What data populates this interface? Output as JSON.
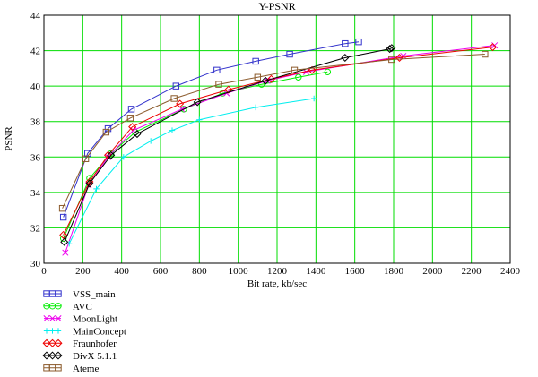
{
  "chart_data": {
    "type": "line",
    "title": "Y-PSNR",
    "xlabel": "Bit rate, kb/sec",
    "ylabel": "PSNR",
    "xlim": [
      0,
      2400
    ],
    "ylim": [
      30,
      44
    ],
    "xticks": [
      0,
      200,
      400,
      600,
      800,
      1000,
      1200,
      1400,
      1600,
      1800,
      2000,
      2200,
      2400
    ],
    "yticks": [
      30,
      32,
      34,
      36,
      38,
      40,
      42,
      44
    ],
    "grid": true,
    "grid_color": "#00dd00",
    "legend_position": "bottom-left",
    "series": [
      {
        "name": "VSS_main",
        "color": "#3333cc",
        "marker": "square",
        "x": [
          100,
          225,
          330,
          450,
          680,
          890,
          1090,
          1265,
          1550,
          1620
        ],
        "y": [
          32.6,
          36.2,
          37.6,
          38.7,
          40.0,
          40.9,
          41.4,
          41.8,
          42.4,
          42.5
        ]
      },
      {
        "name": "AVC",
        "color": "#00ee00",
        "marker": "circle",
        "x": [
          100,
          235,
          345,
          470,
          720,
          920,
          1120,
          1310,
          1460
        ],
        "y": [
          31.4,
          34.8,
          36.2,
          37.4,
          38.7,
          39.6,
          40.1,
          40.5,
          40.8
        ]
      },
      {
        "name": "MoonLight",
        "color": "#ee00ee",
        "marker": "x",
        "x": [
          110,
          230,
          330,
          460,
          710,
          940,
          1150,
          1350,
          1850,
          2320
        ],
        "y": [
          30.6,
          34.4,
          36.0,
          37.5,
          38.7,
          39.6,
          40.3,
          40.8,
          41.7,
          42.3
        ]
      },
      {
        "name": "MainConcept",
        "color": "#00eeee",
        "marker": "plus",
        "x": [
          130,
          270,
          410,
          550,
          660,
          800,
          1090,
          1390
        ],
        "y": [
          31.1,
          34.2,
          36.0,
          36.9,
          37.5,
          38.1,
          38.8,
          39.3
        ]
      },
      {
        "name": "Fraunhofer",
        "color": "#ee0000",
        "marker": "diamond",
        "x": [
          100,
          235,
          330,
          455,
          700,
          950,
          1170,
          1380,
          1830,
          2310
        ],
        "y": [
          31.6,
          34.6,
          36.1,
          37.7,
          39.0,
          39.8,
          40.4,
          40.9,
          41.6,
          42.2
        ]
      },
      {
        "name": "DivX 5.1.1",
        "color": "#000000",
        "marker": "diamond",
        "x": [
          105,
          235,
          345,
          480,
          790,
          1140,
          1550,
          1780,
          1790
        ],
        "y": [
          31.2,
          34.5,
          36.1,
          37.3,
          39.1,
          40.3,
          41.6,
          42.1,
          42.15
        ]
      },
      {
        "name": "Ateme",
        "color": "#8b5a2b",
        "marker": "square",
        "x": [
          95,
          215,
          320,
          445,
          670,
          900,
          1100,
          1290,
          1790,
          2270
        ],
        "y": [
          33.1,
          35.9,
          37.4,
          38.2,
          39.3,
          40.1,
          40.5,
          40.9,
          41.5,
          41.8
        ]
      }
    ]
  }
}
